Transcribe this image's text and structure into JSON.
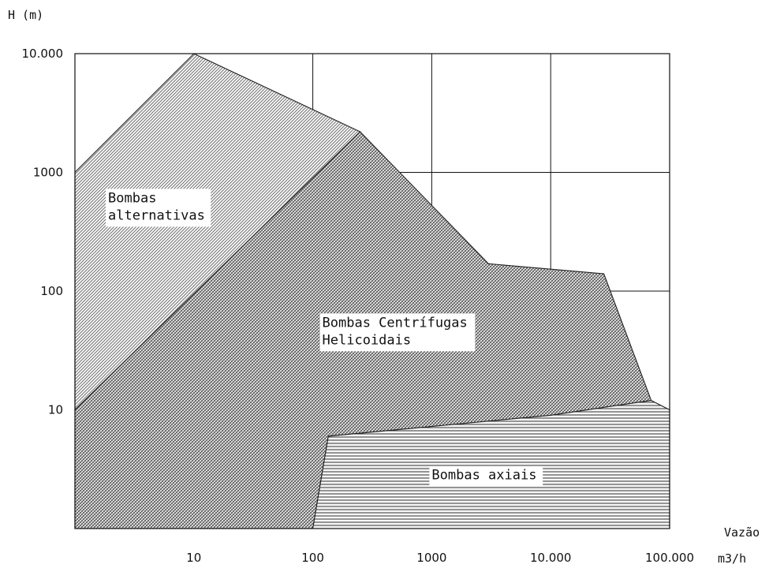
{
  "chart_data": {
    "type": "area",
    "title": "",
    "xlabel": "Vazão",
    "xunit": "m3/h",
    "ylabel": "H (m)",
    "xscale": "log",
    "yscale": "log",
    "xlim": [
      1,
      100000
    ],
    "ylim": [
      1,
      10000
    ],
    "grid": true,
    "x_ticks": [
      {
        "value": 10,
        "label": "10"
      },
      {
        "value": 100,
        "label": "100"
      },
      {
        "value": 1000,
        "label": "1000"
      },
      {
        "value": 10000,
        "label": "10.000"
      },
      {
        "value": 100000,
        "label": "100.000"
      }
    ],
    "y_ticks": [
      {
        "value": 10,
        "label": "10"
      },
      {
        "value": 100,
        "label": "100"
      },
      {
        "value": 1000,
        "label": "1000"
      },
      {
        "value": 10000,
        "label": "10.000"
      }
    ],
    "regions": [
      {
        "name": "Bombas alternativas",
        "label_lines": [
          "Bombas",
          "alternativas"
        ],
        "label_anchor": [
          1.9,
          560
        ],
        "pattern": "diagonal-fine",
        "points": [
          [
            1,
            10
          ],
          [
            1,
            1000
          ],
          [
            10,
            10000
          ],
          [
            250,
            2200
          ]
        ]
      },
      {
        "name": "Bombas Centrífugas Helicoidais",
        "label_lines": [
          "Bombas Centrífugas",
          "Helicoidais"
        ],
        "label_anchor": [
          120,
          50
        ],
        "pattern": "crosshatch",
        "points": [
          [
            1,
            1
          ],
          [
            1,
            10
          ],
          [
            250,
            2200
          ],
          [
            3000,
            170
          ],
          [
            28000,
            140
          ],
          [
            70000,
            12
          ],
          [
            10000,
            9
          ],
          [
            135,
            6
          ],
          [
            100,
            1
          ]
        ]
      },
      {
        "name": "Bombas axiais",
        "label_lines": [
          "Bombas axiais"
        ],
        "label_anchor": [
          1000,
          2.6
        ],
        "pattern": "horizontal",
        "points": [
          [
            100,
            1
          ],
          [
            135,
            6
          ],
          [
            10000,
            9
          ],
          [
            70000,
            12
          ],
          [
            100000,
            10
          ],
          [
            100000,
            1
          ]
        ]
      }
    ]
  }
}
